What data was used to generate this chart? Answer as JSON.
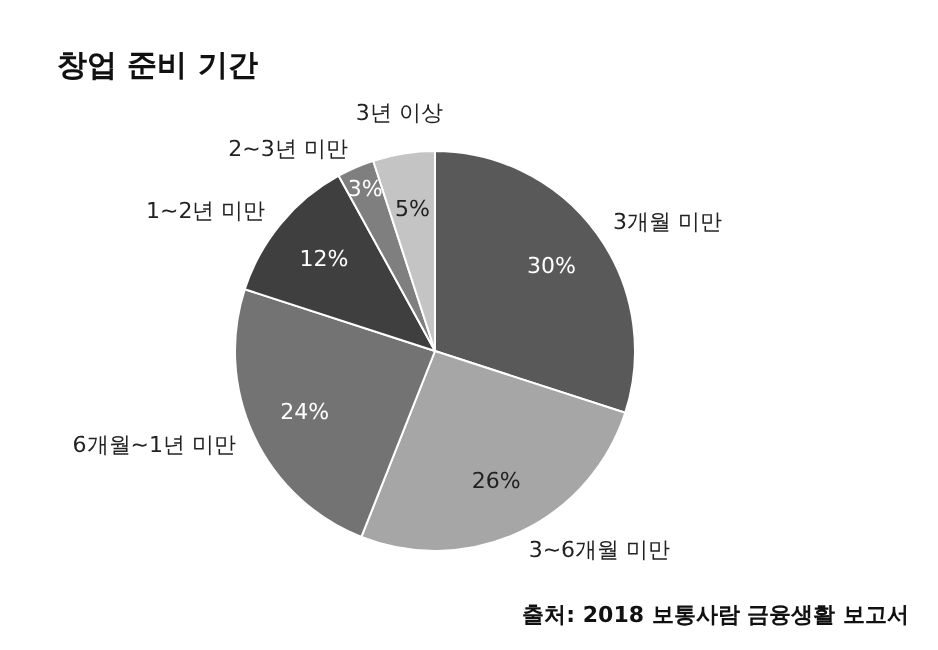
{
  "chart_data": {
    "type": "pie",
    "title": "창업 준비 기간",
    "categories": [
      "3개월 미만",
      "3~6개월 미만",
      "6개월~1년 미만",
      "1~2년 미만",
      "2~3년 미만",
      "3년 이상"
    ],
    "values": [
      30,
      26,
      24,
      12,
      3,
      5
    ],
    "value_labels": [
      "30%",
      "26%",
      "24%",
      "12%",
      "3%",
      "5%"
    ],
    "colors": [
      "#595959",
      "#a6a6a6",
      "#737373",
      "#3f3f3f",
      "#7f7f7f",
      "#c4c4c4"
    ],
    "annotations": [
      "출처: 2018 보통사람 금융생활 보고서"
    ]
  }
}
